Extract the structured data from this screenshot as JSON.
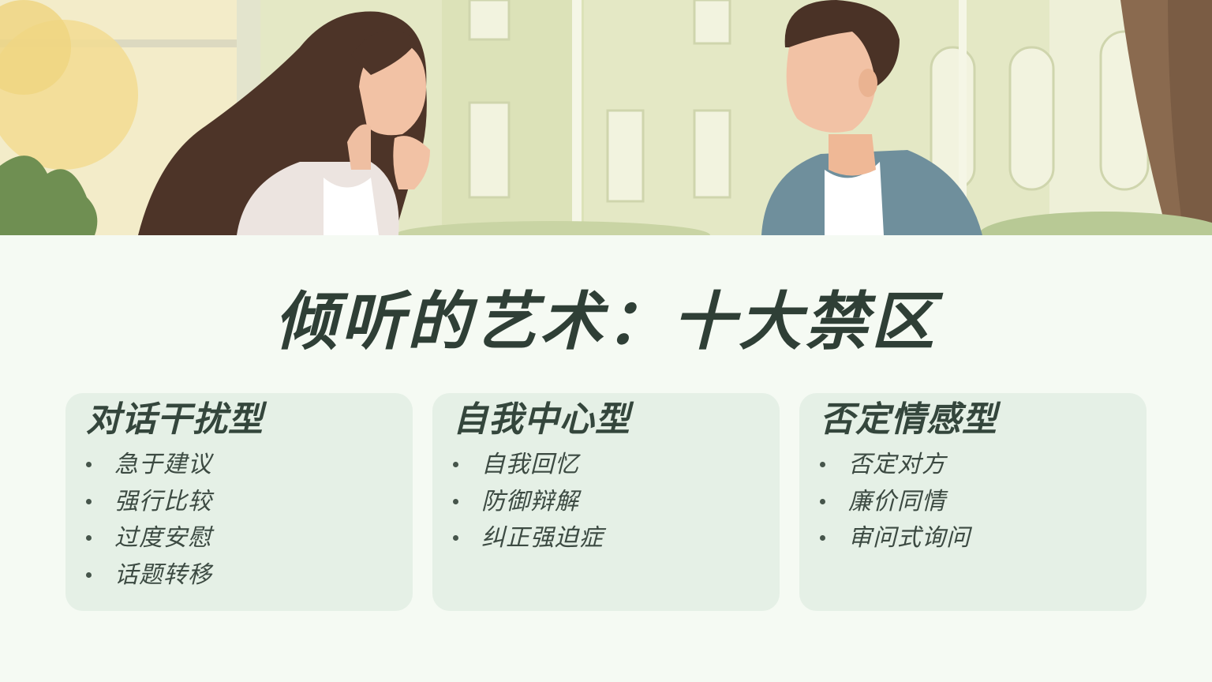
{
  "slide": {
    "title": "倾听的艺术：十大禁区"
  },
  "banner": {
    "illustration": "two-people-conversation-illustration"
  },
  "cards": [
    {
      "heading": "对话干扰型",
      "items": [
        "急于建议",
        "强行比较",
        "过度安慰",
        "话题转移"
      ]
    },
    {
      "heading": "自我中心型",
      "items": [
        "自我回忆",
        "防御辩解",
        "纠正强迫症"
      ]
    },
    {
      "heading": "否定情感型",
      "items": [
        "否定对方",
        "廉价同情",
        "审问式询问"
      ]
    }
  ],
  "colors": {
    "background": "#f5faf3",
    "card": "#e5f0e6",
    "title": "#2f3f36",
    "text": "#3c4a42"
  }
}
